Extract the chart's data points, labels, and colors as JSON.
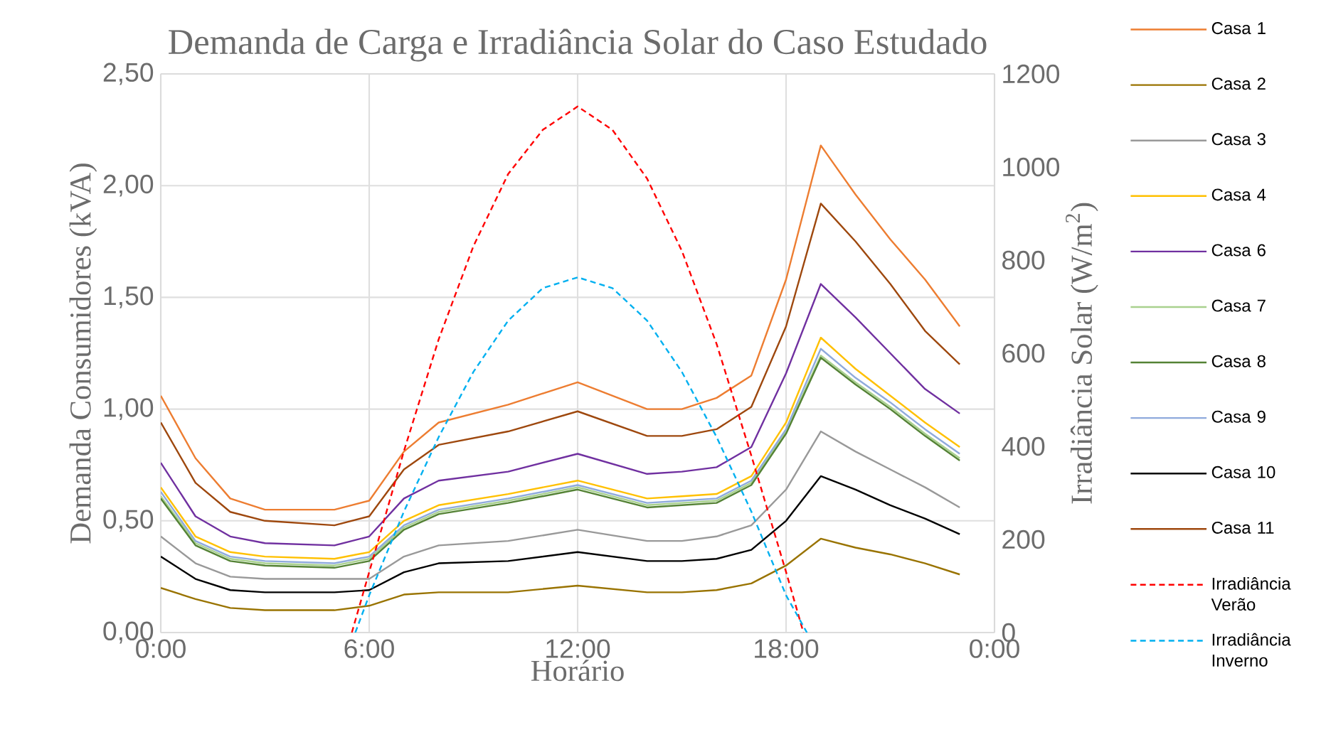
{
  "chart_data": {
    "type": "line",
    "title": "Demanda de Carga e Irradiância Solar do Caso Estudado",
    "xlabel": "Horário",
    "ylabel": "Demanda Consumidores (kVA)",
    "y2label": "Irradiância Solar (W/m$^{2}$)",
    "x": [
      0,
      1,
      2,
      3,
      5,
      6,
      7,
      8,
      10,
      12,
      14,
      15,
      16,
      17,
      18,
      19,
      20,
      21,
      22,
      23
    ],
    "xlim": [
      0,
      24
    ],
    "xticks": [
      {
        "value": 0,
        "label": "0:00"
      },
      {
        "value": 6,
        "label": "6:00"
      },
      {
        "value": 12,
        "label": "12:00"
      },
      {
        "value": 18,
        "label": "18:00"
      },
      {
        "value": 24,
        "label": "0:00"
      }
    ],
    "ylim": [
      0,
      2.5
    ],
    "yticks": [
      {
        "value": 0,
        "label": "0,00"
      },
      {
        "value": 0.5,
        "label": "0,50"
      },
      {
        "value": 1,
        "label": "1,00"
      },
      {
        "value": 1.5,
        "label": "1,50"
      },
      {
        "value": 2,
        "label": "2,00"
      },
      {
        "value": 2.5,
        "label": "2,50"
      }
    ],
    "y2lim": [
      0,
      1200
    ],
    "y2ticks": [
      0,
      200,
      400,
      600,
      800,
      1000,
      1200
    ],
    "grid": true,
    "legend": "right",
    "series": [
      {
        "name": "Casa 1",
        "color": "#ed7d31",
        "values": [
          1.06,
          0.78,
          0.6,
          0.55,
          0.55,
          0.59,
          0.81,
          0.94,
          1.02,
          1.12,
          1.0,
          1.0,
          1.05,
          1.15,
          1.58,
          2.18,
          1.96,
          1.76,
          1.58,
          1.37
        ]
      },
      {
        "name": "Casa 2",
        "color": "#997300",
        "values": [
          0.2,
          0.15,
          0.11,
          0.1,
          0.1,
          0.12,
          0.17,
          0.18,
          0.18,
          0.21,
          0.18,
          0.18,
          0.19,
          0.22,
          0.3,
          0.42,
          0.38,
          0.35,
          0.31,
          0.26
        ]
      },
      {
        "name": "Casa 3",
        "color": "#999999",
        "values": [
          0.43,
          0.31,
          0.25,
          0.24,
          0.24,
          0.24,
          0.34,
          0.39,
          0.41,
          0.46,
          0.41,
          0.41,
          0.43,
          0.48,
          0.64,
          0.9,
          0.81,
          0.73,
          0.65,
          0.56
        ]
      },
      {
        "name": "Casa 4",
        "color": "#ffc000",
        "values": [
          0.65,
          0.43,
          0.36,
          0.34,
          0.33,
          0.36,
          0.5,
          0.57,
          0.62,
          0.68,
          0.6,
          0.61,
          0.62,
          0.7,
          0.94,
          1.32,
          1.18,
          1.06,
          0.94,
          0.83
        ]
      },
      {
        "name": "Casa 6",
        "color": "#7030a0",
        "values": [
          0.76,
          0.52,
          0.43,
          0.4,
          0.39,
          0.43,
          0.6,
          0.68,
          0.72,
          0.8,
          0.71,
          0.72,
          0.74,
          0.83,
          1.16,
          1.56,
          1.41,
          1.25,
          1.09,
          0.98
        ]
      },
      {
        "name": "Casa 7",
        "color": "#a9d18e",
        "values": [
          0.61,
          0.4,
          0.33,
          0.31,
          0.3,
          0.33,
          0.47,
          0.54,
          0.59,
          0.65,
          0.57,
          0.58,
          0.59,
          0.67,
          0.9,
          1.24,
          1.12,
          1.01,
          0.89,
          0.78
        ]
      },
      {
        "name": "Casa 8",
        "color": "#548235",
        "values": [
          0.6,
          0.39,
          0.32,
          0.3,
          0.29,
          0.32,
          0.46,
          0.53,
          0.58,
          0.64,
          0.56,
          0.57,
          0.58,
          0.66,
          0.89,
          1.23,
          1.11,
          1.0,
          0.88,
          0.77
        ]
      },
      {
        "name": "Casa 9",
        "color": "#8faadc",
        "values": [
          0.63,
          0.41,
          0.34,
          0.32,
          0.31,
          0.34,
          0.48,
          0.55,
          0.6,
          0.66,
          0.58,
          0.59,
          0.6,
          0.68,
          0.91,
          1.27,
          1.14,
          1.03,
          0.91,
          0.8
        ]
      },
      {
        "name": "Casa 10",
        "color": "#000000",
        "values": [
          0.34,
          0.24,
          0.19,
          0.18,
          0.18,
          0.19,
          0.27,
          0.31,
          0.32,
          0.36,
          0.32,
          0.32,
          0.33,
          0.37,
          0.5,
          0.7,
          0.64,
          0.57,
          0.51,
          0.44
        ]
      },
      {
        "name": "Casa 11",
        "color": "#9e480e",
        "values": [
          0.94,
          0.67,
          0.54,
          0.5,
          0.48,
          0.52,
          0.73,
          0.84,
          0.9,
          0.99,
          0.88,
          0.88,
          0.91,
          1.01,
          1.37,
          1.92,
          1.75,
          1.56,
          1.35,
          1.2
        ]
      },
      {
        "name": "Irradiância Verão",
        "color": "#ff0000",
        "axis": "y2",
        "line_style": "dashed",
        "x": [
          5.5,
          6,
          7,
          8,
          9,
          10,
          11,
          12,
          13,
          14,
          15,
          16,
          17,
          18,
          18.5
        ],
        "values": [
          0,
          130,
          390,
          630,
          830,
          985,
          1080,
          1130,
          1080,
          975,
          820,
          620,
          380,
          130,
          0
        ]
      },
      {
        "name": "Irradiância Inverno",
        "color": "#00b0f0",
        "axis": "y2",
        "line_style": "dashed",
        "x": [
          5.6,
          6,
          7,
          8,
          9,
          10,
          11,
          12,
          13,
          14,
          15,
          16,
          17,
          18,
          18.6
        ],
        "values": [
          0,
          80,
          260,
          420,
          560,
          670,
          740,
          763,
          740,
          670,
          560,
          420,
          260,
          80,
          0
        ]
      }
    ]
  }
}
